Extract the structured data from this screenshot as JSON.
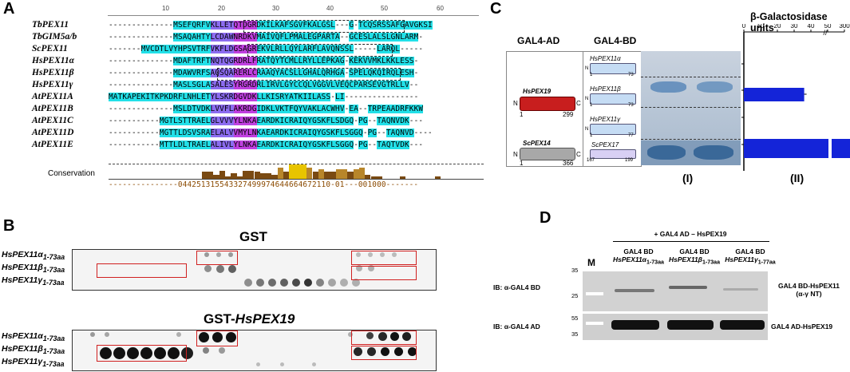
{
  "panels": {
    "a": "A",
    "b": "B",
    "c": "C",
    "d": "D"
  },
  "panel_a": {
    "ruler": [
      "10",
      "20",
      "30",
      "40",
      "50",
      "60"
    ],
    "rows": [
      {
        "name": "TbPEX11",
        "seq": "--------------MSEFQRFVKLLETQTDGRDKILKAFSGVFKALGSL---G-TCQSRSSAFGAVGKSI"
      },
      {
        "name": "TbGIM5a/b",
        "seq": "--------------MSAQAHTYLCDAWNRDKVMAIVQFLPMALEGPARTA--GCESLALSLGNLARM-"
      },
      {
        "name": "ScPEX11",
        "seq": "-------MVCDTLVYHPSVTRFVKFLDGSAGREKVLRLLQYLARFLAVQNSSL-----LARQL-----"
      },
      {
        "name": "HsPEX11α",
        "seq": "--------------MDAFTRFTNQTQGRDRLFRATQYTCMLLRYLLEPKAG-KEKVVMKLKKLESS-"
      },
      {
        "name": "HsPEX11β",
        "seq": "--------------MDAWVRFSAQSQARERLCRAAQYACSLLGHALQRHGA-SPELQKQIRQLESH-"
      },
      {
        "name": "HsPEX11γ",
        "seq": "--------------MASLSGLASALESYRGRDRLIRVLGYCCQLVGGVLVEQCPARSEVGTRLLV--"
      },
      {
        "name": "AtPEX11A",
        "seq": "MATKAPEKITKPKDRFLNHLETYLSKRDGVDKLLKISRYATKIILASS-LI----------------"
      },
      {
        "name": "AtPEX11B",
        "seq": "--------------MSLDTVDKLVVFLAKRDGIDKLVKTFQYVAKLACWHV-EA--TRPEAADRFKKW"
      },
      {
        "name": "AtPEX11C",
        "seq": "-----------MGTLSTTRAELGLVVVYLNKAEARDKICRAIQYGSKFLSDGQ-PG--TAQNVDK---"
      },
      {
        "name": "AtPEX11D",
        "seq": "-----------MGTTLDSVSRAELALVVMYLNKAEARDKICRAIQYGSKFLSGGQ-PG--TAQNVD----"
      },
      {
        "name": "AtPEX11E",
        "seq": "-----------MTTLDLTRAELALIVLYLNKAEARDKICRAIQYGSKFLSGGQ-PG--TAQTVDK---"
      }
    ],
    "conservation_label": "Conservation",
    "conservation_numbers": "---------------044251315543327499974644664672110-01---001000-------"
  },
  "panel_b": {
    "gst_title": "GST",
    "gst_pex19_title_prefix": "GST-",
    "gst_pex19_title_gene": "HsPEX19",
    "rows": [
      {
        "gene": "HsPEX11α",
        "sub": "1-73aa"
      },
      {
        "gene": "HsPEX11β",
        "sub": "1-73aa"
      },
      {
        "gene": "HsPEX11γ",
        "sub": "1-73aa"
      }
    ]
  },
  "panel_c": {
    "gal4_ad": "GAL4-AD",
    "gal4_bd": "GAL4-BD",
    "ad_constructs": [
      {
        "name": "HsPEX19",
        "start": "1",
        "end": "299",
        "n": "N",
        "c": "C",
        "color": "#c81e1e"
      },
      {
        "name": "ScPEX14",
        "start": "1",
        "end": "366",
        "n": "N",
        "c": "C",
        "color": "#a8a8a8"
      }
    ],
    "bd_constructs": [
      {
        "name": "HsPEX11α",
        "start": "1",
        "end": "73",
        "n": "N",
        "c": "C"
      },
      {
        "name": "HsPEX11β",
        "start": "1",
        "end": "73",
        "n": "N",
        "c": "C"
      },
      {
        "name": "HsPEX11γ",
        "start": "1",
        "end": "77",
        "n": "N",
        "c": "C"
      },
      {
        "name": "ScPEX17",
        "start": "167",
        "end": "199",
        "n": "N",
        "c": "C"
      }
    ],
    "label_i": "(I)",
    "label_ii": "(II)",
    "chart_data": {
      "type": "bar",
      "title": "β-Galactosidase units",
      "orientation": "horizontal",
      "axis_ticks": [
        "0",
        "10",
        "20",
        "30",
        "40",
        "50",
        "300"
      ],
      "axis_break": "//",
      "rows": [
        {
          "row": 1,
          "value": 0
        },
        {
          "row": 2,
          "value": 36
        },
        {
          "row": 3,
          "value": 0
        },
        {
          "row": 4,
          "value": 300
        }
      ]
    }
  },
  "panel_d": {
    "header": "+ GAL4 AD – HsPEX19",
    "marker_label": "M",
    "lanes": [
      {
        "line1": "GAL4 BD",
        "line2": "HsPEX11α",
        "sub": "1-73aa"
      },
      {
        "line1": "GAL4 BD",
        "line2": "HsPEX11β",
        "sub": "1-73aa"
      },
      {
        "line1": "GAL4 BD",
        "line2": "HsPEX11γ",
        "sub": "1-77aa"
      }
    ],
    "ib_top": "IB: α-GAL4 BD",
    "ib_bottom": "IB: α-GAL4 AD",
    "mw_top": [
      "35",
      "25"
    ],
    "mw_bottom": [
      "55",
      "35"
    ],
    "right_top_line1": "GAL4 BD-HsPEX11",
    "right_top_line2": "(α-γ NT)",
    "right_bottom": "GAL4 AD-HsPEX19"
  }
}
